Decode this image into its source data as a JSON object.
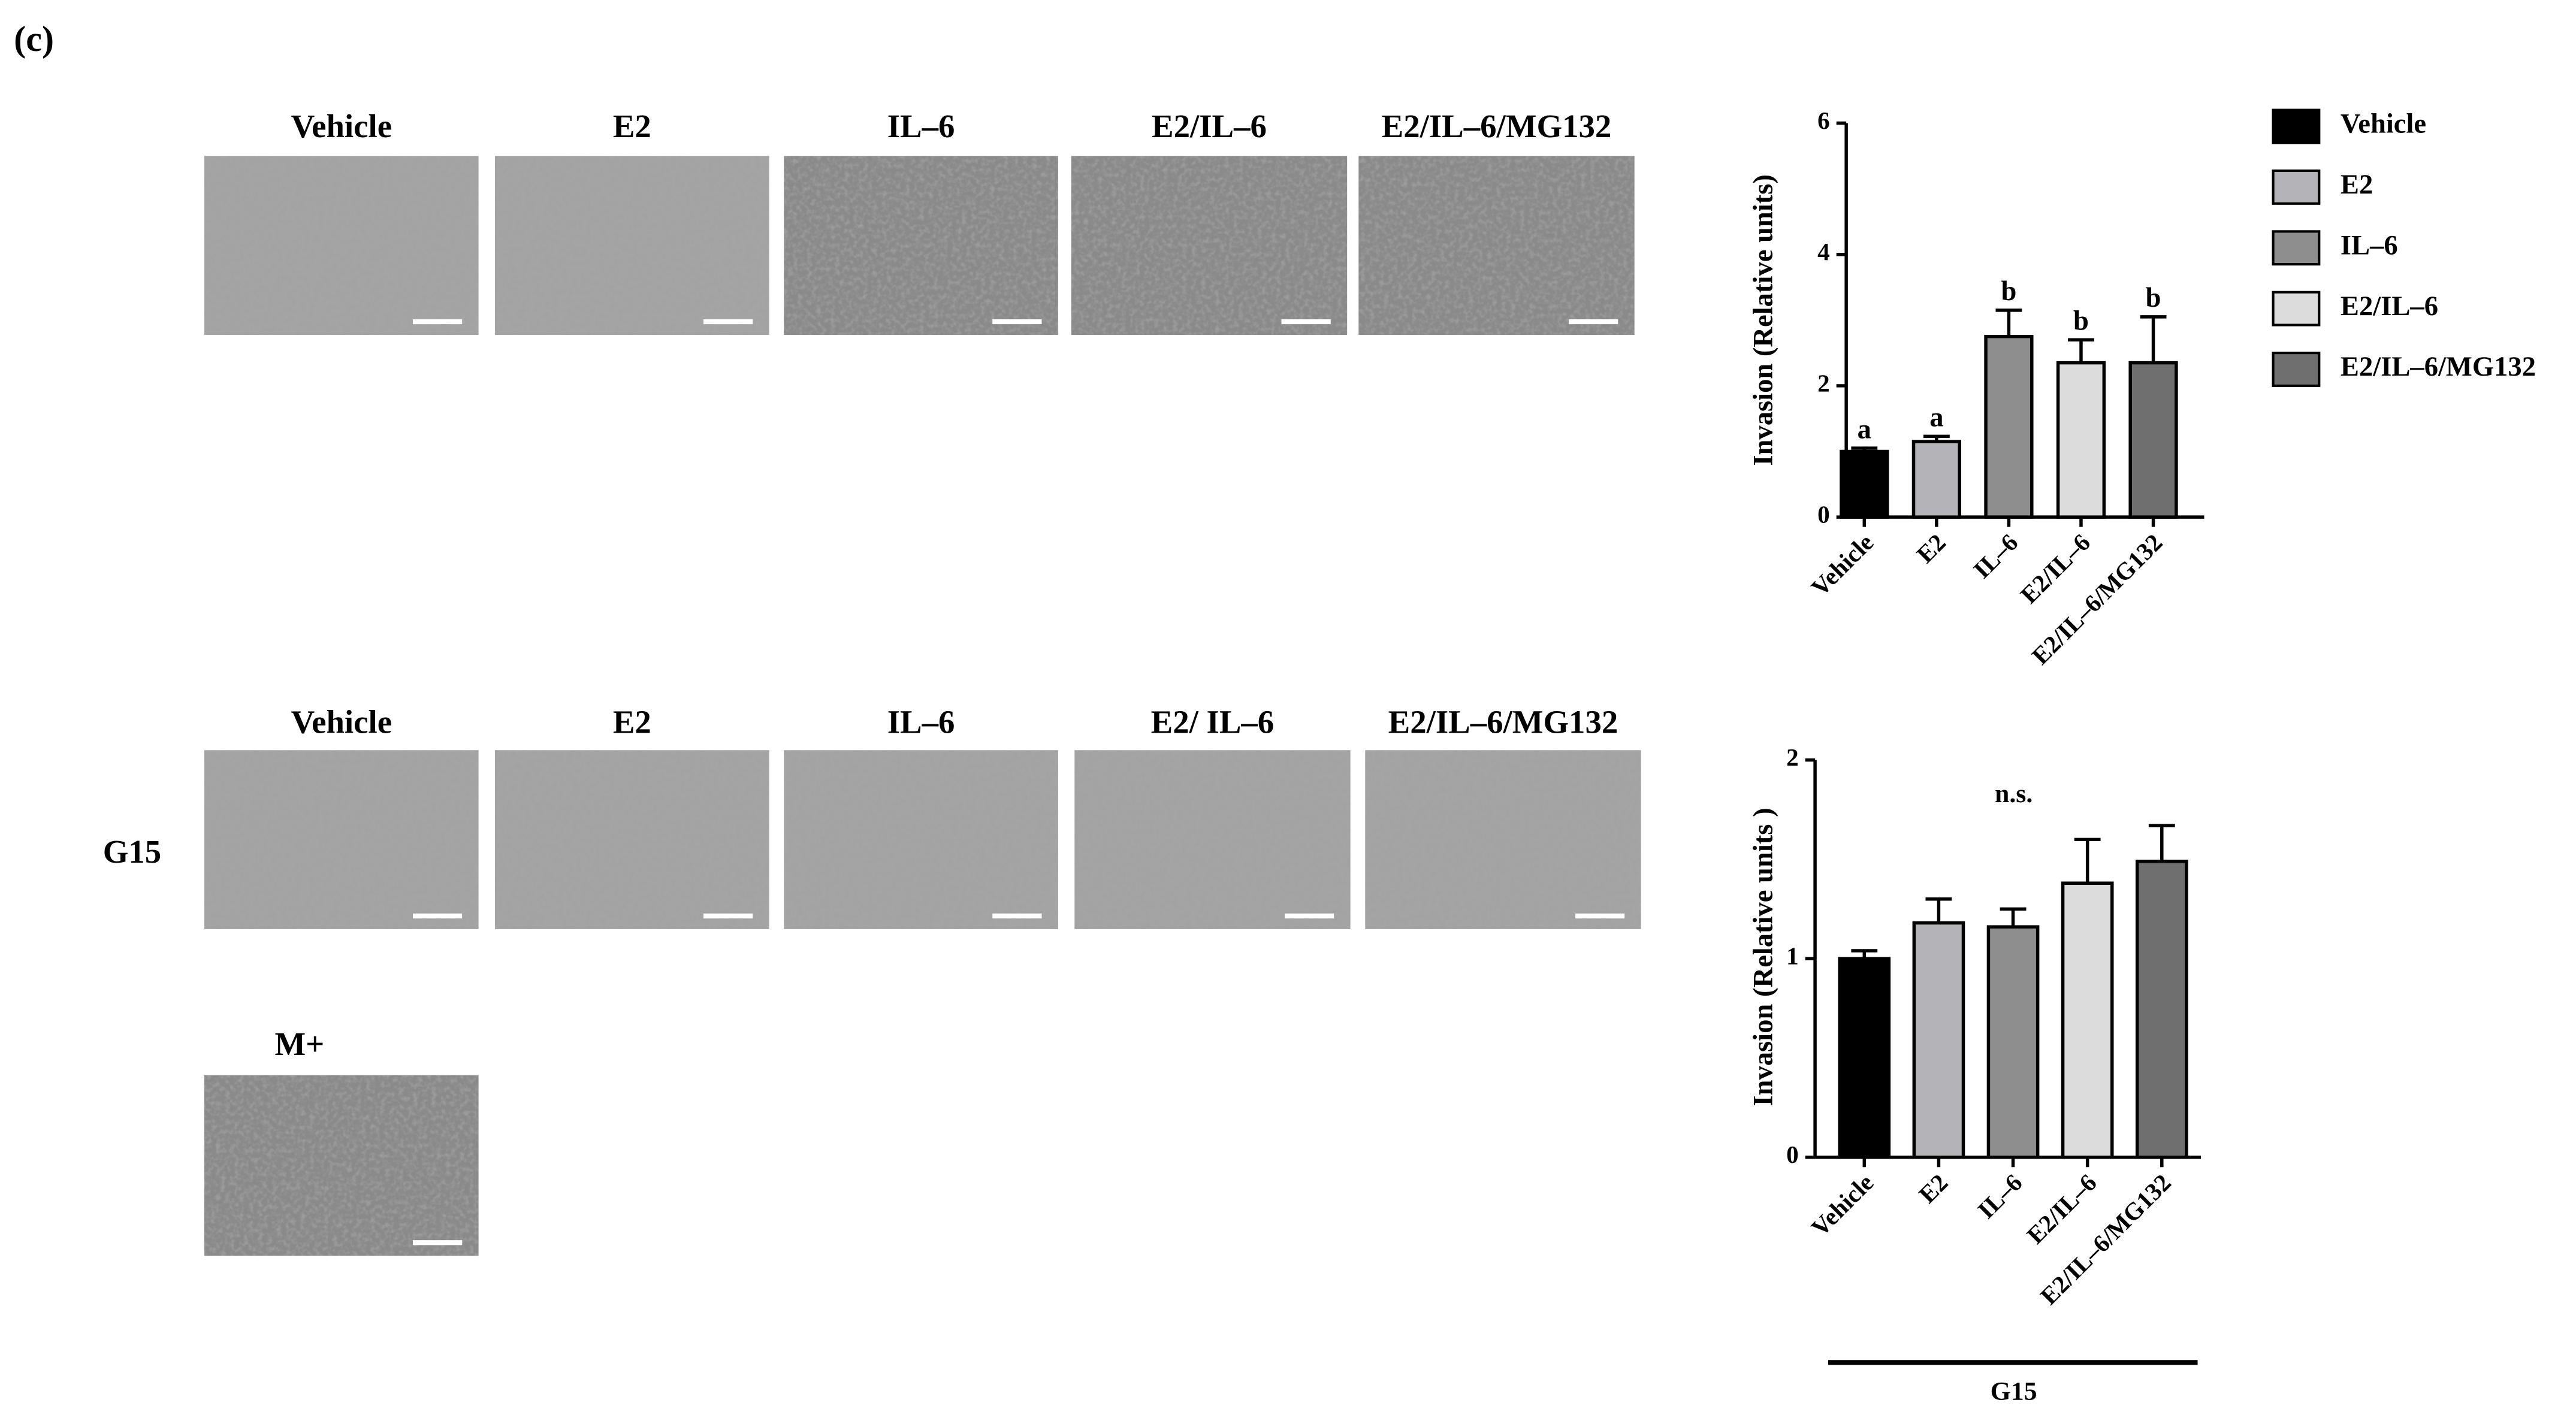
{
  "panel_label": "(c)",
  "images": {
    "row1": [
      "Vehicle",
      "E2",
      "IL–6",
      "E2/IL–6",
      "E2/IL–6/MG132"
    ],
    "row2": [
      "Vehicle",
      "E2",
      "IL–6",
      "E2/ IL–6",
      "E2/IL–6/MG132"
    ],
    "row2_label": "G15",
    "extra": "M+"
  },
  "chart_data": [
    {
      "type": "bar",
      "y_label": "Invasion (Relative units)",
      "categories": [
        "Vehicle",
        "E2",
        "IL–6",
        "E2/IL–6",
        "E2/IL–6/MG132"
      ],
      "values": [
        1.0,
        1.15,
        2.75,
        2.35,
        2.35
      ],
      "errors": [
        0.05,
        0.08,
        0.4,
        0.35,
        0.7
      ],
      "significance": [
        "a",
        "a",
        "b",
        "b",
        "b"
      ],
      "colors": [
        "#000000",
        "#b3b3b8",
        "#8e8e8e",
        "#dcdcdc",
        "#6f6f6f"
      ],
      "ylim": [
        0,
        6
      ],
      "yticks": [
        0,
        2,
        4,
        6
      ],
      "legend": "right"
    },
    {
      "type": "bar",
      "y_label": "Invasion (Relative units )",
      "categories": [
        "Vehicle",
        "E2",
        "IL–6",
        "E2/IL–6",
        "E2/IL–6/MG132"
      ],
      "values": [
        1.0,
        1.18,
        1.16,
        1.38,
        1.49
      ],
      "errors": [
        0.04,
        0.12,
        0.09,
        0.22,
        0.18
      ],
      "colors": [
        "#000000",
        "#b3b3b8",
        "#8e8e8e",
        "#dcdcdc",
        "#6f6f6f"
      ],
      "annotation": "n.s.",
      "group_label": "G15",
      "ylim": [
        0,
        2
      ],
      "yticks": [
        0,
        1,
        2
      ]
    }
  ]
}
